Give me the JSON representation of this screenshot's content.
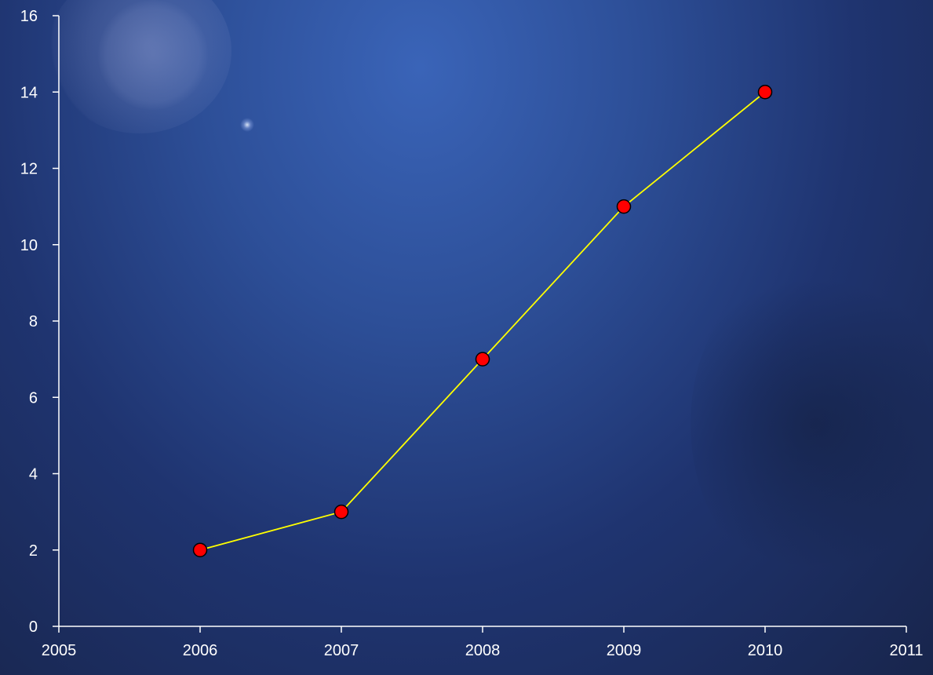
{
  "chart_data": {
    "type": "line",
    "title": "",
    "xlabel": "",
    "ylabel": "",
    "xlim": [
      2005,
      2011
    ],
    "ylim": [
      0,
      16
    ],
    "x_ticks": [
      2005,
      2006,
      2007,
      2008,
      2009,
      2010,
      2011
    ],
    "y_ticks": [
      0,
      2,
      4,
      6,
      8,
      10,
      12,
      14,
      16
    ],
    "grid": false,
    "legend": "none",
    "series": [
      {
        "x": [
          2006,
          2007,
          2008,
          2009,
          2010
        ],
        "y": [
          2,
          3,
          7,
          11,
          14
        ],
        "line_color": "#ffff00",
        "marker_color": "#ff0000",
        "marker_edge": "#000000"
      }
    ]
  },
  "colors": {
    "axis": "#ffffff",
    "text": "#ffffff",
    "background": "#2a4688"
  }
}
